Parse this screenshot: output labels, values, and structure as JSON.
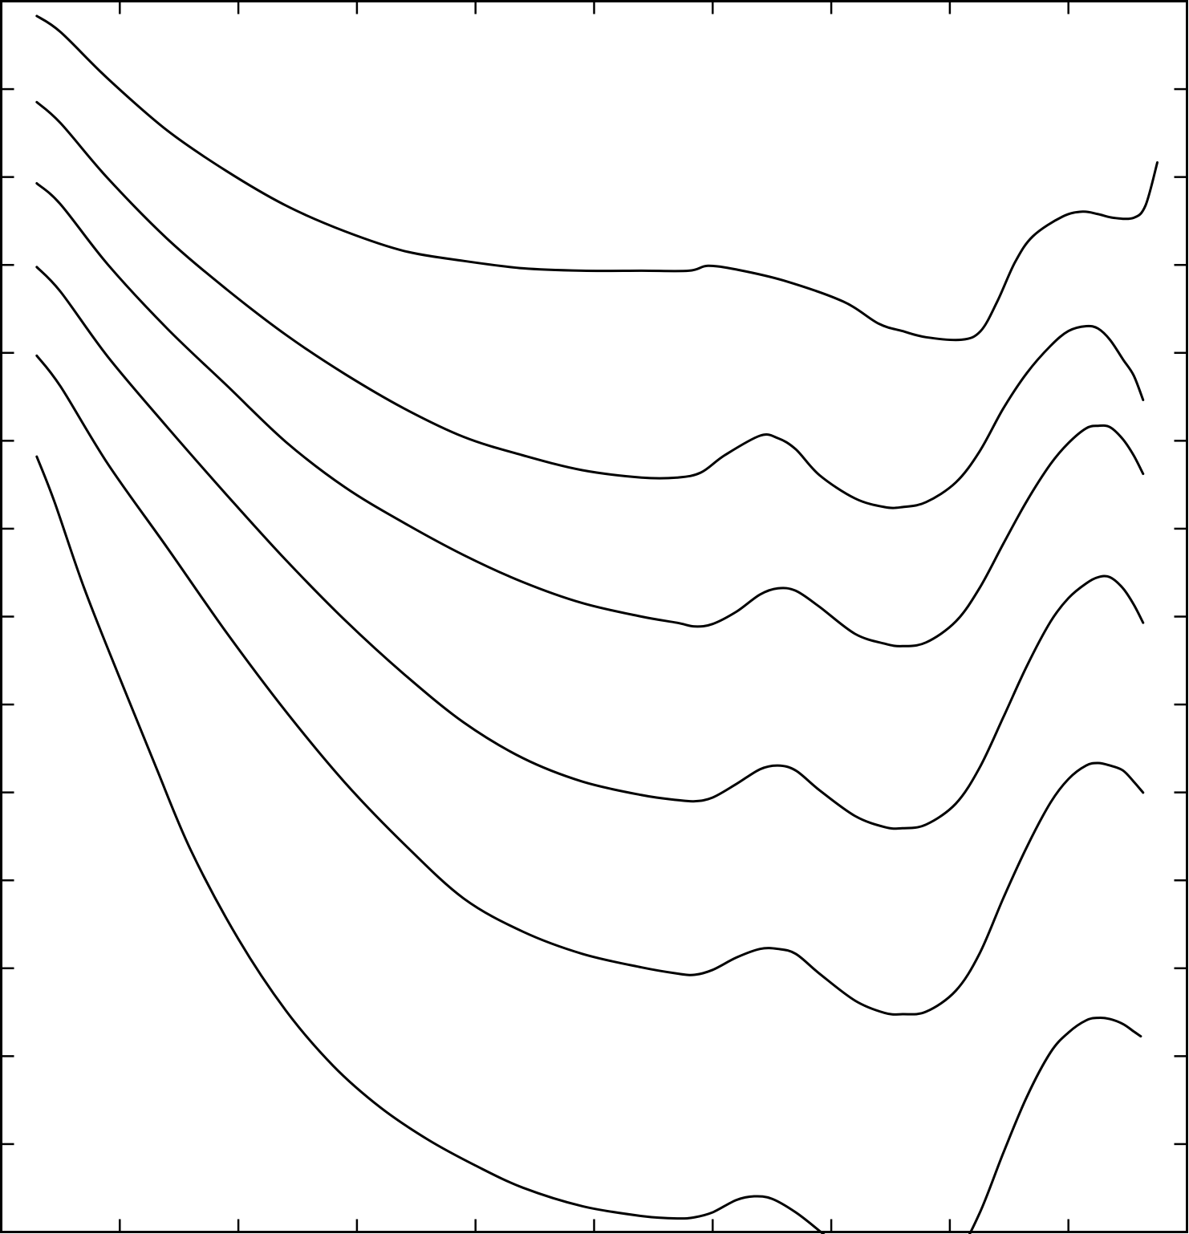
{
  "chart_data": {
    "type": "line",
    "title": "",
    "xlabel": "",
    "ylabel": "",
    "legend": "none",
    "grid": false,
    "x_ticks": {
      "count": 9,
      "labels": []
    },
    "y_ticks": {
      "count": 13,
      "labels": []
    },
    "xlim": [
      0,
      100
    ],
    "ylim": [
      0,
      100
    ],
    "series": [
      {
        "x": [
          3,
          5,
          9,
          14,
          19,
          24,
          29,
          34,
          39,
          44,
          49,
          54,
          58,
          59.6,
          62,
          66,
          71,
          74,
          76,
          78,
          81,
          82.6,
          84,
          85.5,
          87,
          89.5,
          91.2,
          92.5,
          93.8,
          95.5,
          96.5,
          97.5
        ],
        "y": [
          98.8,
          97.5,
          93.7,
          89.5,
          86.2,
          83.4,
          81.3,
          79.7,
          78.9,
          78.3,
          78.1,
          78.1,
          78.1,
          78.5,
          78.2,
          77.3,
          75.6,
          73.8,
          73.2,
          72.7,
          72.5,
          73.2,
          75.6,
          78.8,
          80.9,
          82.5,
          82.9,
          82.7,
          82.4,
          82.4,
          83.4,
          86.9
        ]
      },
      {
        "x": [
          3,
          5,
          9,
          14,
          19,
          24,
          29,
          34,
          39,
          44,
          49,
          54,
          57,
          59,
          61,
          64,
          65.5,
          67,
          69,
          72,
          74.5,
          76,
          78,
          80.5,
          82.5,
          84.5,
          86.5,
          88.5,
          90,
          91.5,
          92.5,
          93.5,
          94.6,
          95.5,
          96.3
        ],
        "y": [
          91.8,
          90.1,
          85.6,
          80.7,
          76.6,
          72.9,
          69.7,
          66.9,
          64.6,
          63.1,
          61.9,
          61.3,
          61.3,
          61.7,
          63.1,
          64.7,
          64.5,
          63.6,
          61.5,
          59.6,
          58.9,
          58.9,
          59.3,
          60.9,
          63.4,
          66.9,
          69.8,
          72.0,
          73.2,
          73.6,
          73.4,
          72.5,
          70.9,
          69.6,
          67.6
        ]
      },
      {
        "x": [
          3,
          5,
          9,
          14,
          19,
          24,
          29,
          34,
          39,
          44,
          49,
          54,
          57,
          58.5,
          60,
          62,
          64,
          65.5,
          67,
          69,
          72,
          74.5,
          76,
          78,
          80.5,
          82.5,
          84.5,
          86.5,
          88.5,
          90,
          91.5,
          92.5,
          93.5,
          94.6,
          95.5,
          96.3
        ],
        "y": [
          85.2,
          83.5,
          78.6,
          73.4,
          68.8,
          64.2,
          60.5,
          57.6,
          55.0,
          52.8,
          51.1,
          50.0,
          49.5,
          49.2,
          49.4,
          50.4,
          51.8,
          52.3,
          52.1,
          50.8,
          48.6,
          47.8,
          47.6,
          47.9,
          49.6,
          52.3,
          55.9,
          59.4,
          62.4,
          64.1,
          65.3,
          65.5,
          65.4,
          64.4,
          63.1,
          61.6
        ]
      },
      {
        "x": [
          3,
          5,
          9,
          14,
          19,
          24,
          29,
          34,
          39,
          44,
          49,
          54,
          57,
          58.5,
          60,
          62,
          64,
          65.5,
          67,
          69,
          72,
          74.5,
          76,
          78,
          80.5,
          82.5,
          84.5,
          86.5,
          88.5,
          90,
          91.5,
          92.5,
          93.5,
          94.6,
          95.5,
          96.3
        ],
        "y": [
          78.4,
          76.4,
          71.1,
          65.4,
          59.9,
          54.6,
          49.7,
          45.3,
          41.4,
          38.5,
          36.6,
          35.5,
          35.1,
          35.0,
          35.3,
          36.4,
          37.6,
          37.9,
          37.5,
          35.9,
          33.8,
          32.9,
          32.8,
          33.1,
          34.8,
          37.7,
          41.8,
          46.0,
          49.6,
          51.5,
          52.7,
          53.2,
          53.2,
          52.3,
          51.0,
          49.5
        ]
      },
      {
        "x": [
          3,
          5,
          9,
          14,
          19,
          24,
          29,
          34,
          39,
          44,
          49,
          54,
          57,
          58.5,
          60,
          62,
          64,
          65.5,
          67,
          69,
          72,
          74.5,
          76,
          78,
          80.5,
          82.5,
          84.5,
          86.5,
          88.5,
          90,
          91.5,
          92.5,
          93.5,
          94.6,
          95.5,
          96.3
        ],
        "y": [
          71.2,
          68.7,
          62.4,
          55.6,
          48.7,
          42.3,
          36.5,
          31.5,
          27.1,
          24.4,
          22.6,
          21.5,
          21.0,
          20.9,
          21.3,
          22.3,
          23.0,
          23.0,
          22.6,
          21.0,
          18.8,
          17.8,
          17.7,
          17.9,
          19.6,
          22.6,
          27.1,
          31.3,
          34.9,
          36.8,
          37.9,
          38.1,
          37.9,
          37.5,
          36.6,
          35.7
        ]
      },
      {
        "x": [
          3,
          4.5,
          7,
          10,
          13,
          16,
          20,
          24,
          28,
          32,
          36,
          40,
          44,
          49,
          54,
          57,
          58.5,
          60,
          62,
          63.5,
          65,
          67,
          69,
          72,
          74.5,
          76,
          78,
          80.5,
          82.5,
          84.5,
          86.5,
          88.5,
          90,
          91.5,
          92.5,
          93.5,
          94.6,
          95.5,
          96.1
        ],
        "y": [
          63.0,
          59.3,
          52.3,
          45.0,
          37.9,
          31.0,
          23.8,
          18.0,
          13.5,
          10.1,
          7.5,
          5.4,
          3.6,
          2.1,
          1.3,
          1.1,
          1.2,
          1.6,
          2.6,
          2.9,
          2.7,
          1.6,
          0.1,
          -2.3,
          -4.0,
          -4.5,
          -4.2,
          -2.0,
          1.5,
          6.4,
          11.0,
          14.6,
          16.2,
          17.2,
          17.4,
          17.3,
          16.9,
          16.3,
          15.9
        ]
      }
    ]
  }
}
